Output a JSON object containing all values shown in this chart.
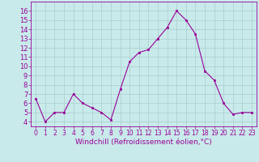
{
  "x": [
    0,
    1,
    2,
    3,
    4,
    5,
    6,
    7,
    8,
    9,
    10,
    11,
    12,
    13,
    14,
    15,
    16,
    17,
    18,
    19,
    20,
    21,
    22,
    23
  ],
  "y": [
    6.5,
    4.0,
    5.0,
    5.0,
    7.0,
    6.0,
    5.5,
    5.0,
    4.2,
    7.5,
    10.5,
    11.5,
    11.8,
    13.0,
    14.2,
    16.0,
    15.0,
    13.5,
    9.5,
    8.5,
    6.0,
    4.8,
    5.0,
    5.0
  ],
  "line_color": "#990099",
  "marker": "s",
  "markersize": 2.0,
  "linewidth": 0.8,
  "bg_color": "#c8eaea",
  "grid_color": "#aacccc",
  "xlabel": "Windchill (Refroidissement éolien,°C)",
  "xlabel_fontsize": 6.5,
  "tick_fontsize": 6,
  "ylim": [
    3.5,
    17
  ],
  "xlim": [
    -0.5,
    23.5
  ],
  "yticks": [
    4,
    5,
    6,
    7,
    8,
    9,
    10,
    11,
    12,
    13,
    14,
    15,
    16
  ],
  "xticks": [
    0,
    1,
    2,
    3,
    4,
    5,
    6,
    7,
    8,
    9,
    10,
    11,
    12,
    13,
    14,
    15,
    16,
    17,
    18,
    19,
    20,
    21,
    22,
    23
  ]
}
